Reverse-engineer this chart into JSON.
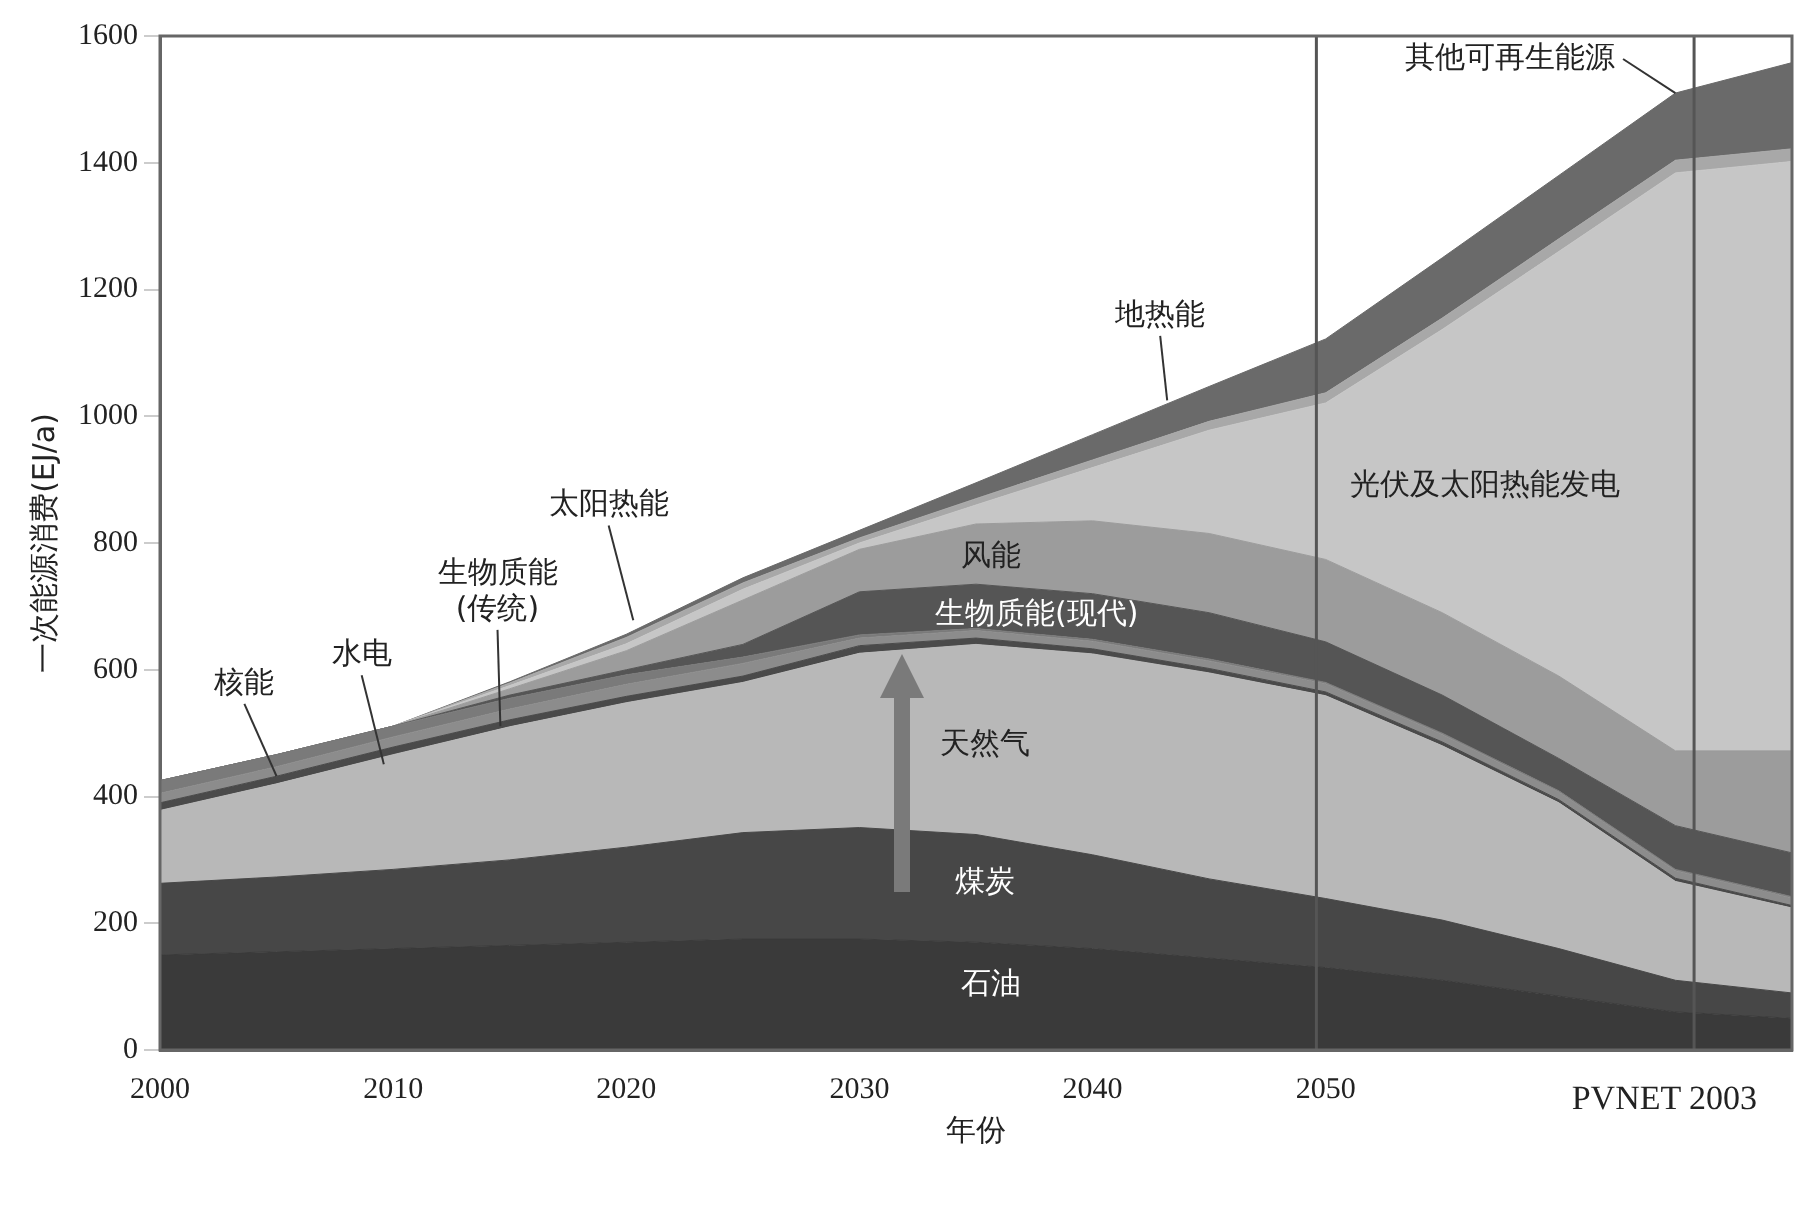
{
  "chart_data": {
    "type": "area",
    "stacked": true,
    "xlabel": "年份",
    "ylabel": "一次能源消费(EJ/a)",
    "x": [
      2000,
      2005,
      2010,
      2015,
      2020,
      2025,
      2030,
      2035,
      2040,
      2045,
      2050,
      2055,
      2060,
      2065,
      2070
    ],
    "xlim": [
      2000,
      2070
    ],
    "xticks": [
      2000,
      2010,
      2020,
      2030,
      2040,
      2050
    ],
    "ylim": [
      0,
      1600
    ],
    "yticks": [
      0,
      200,
      400,
      600,
      800,
      1000,
      1200,
      1400,
      1600
    ],
    "grid": false,
    "legend": false,
    "series": [
      {
        "color": "#3a3a3a",
        "values": [
          150,
          155,
          160,
          165,
          170,
          175,
          175,
          170,
          160,
          145,
          130,
          110,
          85,
          60,
          50
        ]
      },
      {
        "color": "#474747",
        "values": [
          113,
          118,
          125,
          135,
          150,
          168,
          176,
          170,
          148,
          125,
          109,
          95,
          75,
          50,
          40
        ]
      },
      {
        "color": "#b8b8b8",
        "values": [
          115,
          147,
          181,
          210,
          228,
          237,
          275,
          300,
          317,
          325,
          320,
          275,
          230,
          156,
          134
        ]
      },
      {
        "color": "#4a4a4a",
        "values": [
          12,
          12,
          12,
          11,
          10,
          10,
          12,
          10,
          8,
          7,
          6,
          6,
          5,
          5,
          4
        ]
      },
      {
        "color": "#8c8c8c",
        "values": [
          15,
          15,
          16,
          17,
          19,
          20,
          12,
          12,
          12,
          12,
          13,
          12,
          12,
          12,
          12
        ]
      },
      {
        "color": "#7a7a7a",
        "values": [
          20,
          19,
          17,
          17,
          15,
          10,
          5,
          3,
          3,
          3,
          2,
          2,
          2,
          2,
          2
        ]
      },
      {
        "color": "#555555",
        "values": [
          0,
          0,
          0,
          5,
          8,
          20,
          68,
          70,
          72,
          73,
          64,
          60,
          51,
          69,
          69
        ]
      },
      {
        "color": "#9c9c9c",
        "values": [
          0,
          0,
          0,
          10,
          30,
          70,
          67,
          95,
          115,
          125,
          130,
          130,
          130,
          118,
          161
        ]
      },
      {
        "color": "#c6c6c6",
        "values": [
          0,
          0,
          0,
          5,
          11,
          17,
          10,
          30,
          84,
          163,
          247,
          447,
          670,
          912,
          930
        ]
      },
      {
        "color": "#a8a8a8",
        "values": [
          0,
          0,
          0,
          4,
          10,
          10,
          8,
          10,
          12,
          14,
          16,
          18,
          20,
          20,
          20
        ]
      },
      {
        "color": "#6a6a6a",
        "values": [
          0,
          0,
          0,
          2,
          5,
          8,
          12,
          25,
          40,
          55,
          85,
          95,
          100,
          106,
          136
        ]
      }
    ],
    "ref_lines": [
      {
        "axis": "x",
        "value": 2049.6,
        "color": "#555555"
      },
      {
        "axis": "x",
        "value": 2065.8,
        "color": "#555555"
      }
    ],
    "annotations": [
      {
        "text": "核能",
        "x": 2005,
        "y": 432
      },
      {
        "text": "水电",
        "x": 2009.6,
        "y": 451
      },
      {
        "text": "生物质能\n(传统)",
        "x": 2014.6,
        "y": 511
      },
      {
        "text": "太阳热能",
        "x": 2020.3,
        "y": 678
      },
      {
        "text": "地热能",
        "x": 2043.2,
        "y": 1025
      },
      "光伏及太阳热能发电",
      "风能",
      "生物质能(现代)",
      "天然气",
      "煤炭",
      "石油",
      {
        "text": "其他可再生能源",
        "x": 2065,
        "y": 1510
      },
      "PVNET 2003"
    ]
  }
}
